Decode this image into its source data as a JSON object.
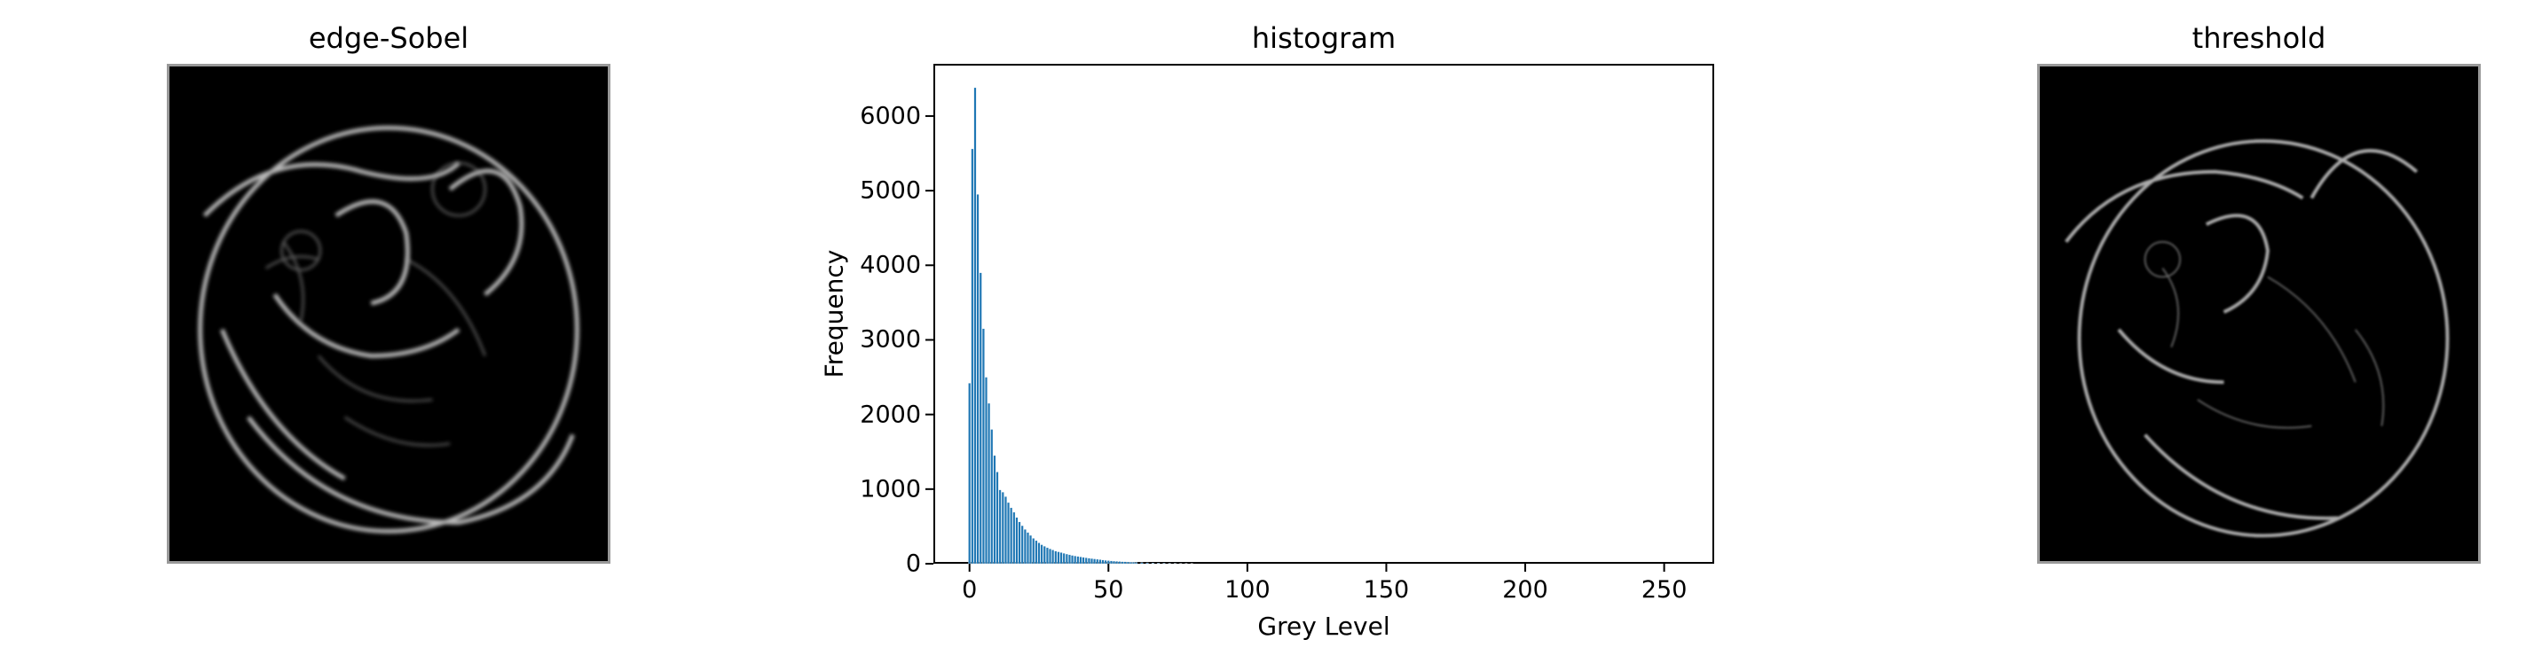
{
  "panels": {
    "left": {
      "title": "edge-Sobel"
    },
    "middle": {
      "title": "histogram"
    },
    "right": {
      "title": "threshold"
    }
  },
  "chart_data": {
    "type": "bar",
    "title": "histogram",
    "xlabel": "Grey Level",
    "ylabel": "Frequency",
    "xlim": [
      -13,
      268
    ],
    "ylim": [
      0,
      6700
    ],
    "xticks": [
      0,
      50,
      100,
      150,
      200,
      250
    ],
    "yticks": [
      0,
      1000,
      2000,
      3000,
      4000,
      5000,
      6000
    ],
    "bar_color": "#1f77b4",
    "x": [
      0,
      1,
      2,
      3,
      4,
      5,
      6,
      7,
      8,
      9,
      10,
      11,
      12,
      13,
      14,
      15,
      16,
      17,
      18,
      19,
      20,
      21,
      22,
      23,
      24,
      25,
      26,
      27,
      28,
      29,
      30,
      31,
      32,
      33,
      34,
      35,
      36,
      37,
      38,
      39,
      40,
      41,
      42,
      43,
      44,
      45,
      46,
      47,
      48,
      49,
      50,
      51,
      52,
      53,
      54,
      55,
      56,
      57,
      58,
      59,
      60,
      62,
      64,
      66,
      68,
      70,
      72,
      74,
      76,
      78,
      80
    ],
    "values": [
      2420,
      5560,
      6380,
      4950,
      3900,
      3150,
      2500,
      2150,
      1800,
      1450,
      1230,
      990,
      960,
      900,
      820,
      750,
      690,
      620,
      560,
      510,
      460,
      420,
      380,
      340,
      310,
      280,
      255,
      235,
      215,
      200,
      185,
      170,
      160,
      150,
      140,
      130,
      120,
      112,
      105,
      98,
      92,
      86,
      80,
      75,
      70,
      65,
      60,
      55,
      50,
      46,
      42,
      38,
      35,
      32,
      30,
      28,
      26,
      24,
      22,
      20,
      18,
      15,
      12,
      10,
      8,
      7,
      6,
      5,
      4,
      3,
      2
    ]
  }
}
